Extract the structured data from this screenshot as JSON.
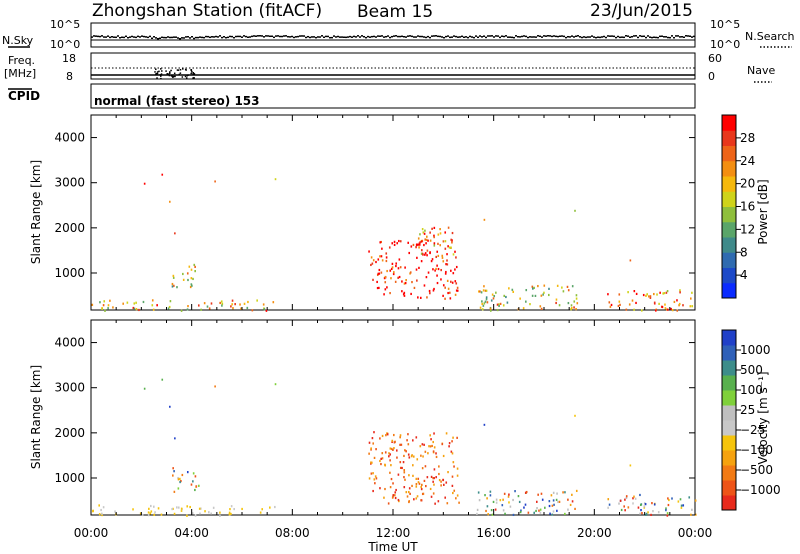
{
  "header": {
    "station": "Zhongshan Station (fitACF)",
    "beam": "Beam 15",
    "date": "23/Jun/2015"
  },
  "panels": {
    "nsky": {
      "label": "N.Sky",
      "y_top": "10^5",
      "y_bottom": "10^0"
    },
    "nsearch": {
      "label": "N.Search",
      "y_top": "10^5",
      "y_bottom": "10^0"
    },
    "freq": {
      "label_line1": "Freq.",
      "label_line2": "[MHz]",
      "y_top": "18",
      "y_bottom": "8"
    },
    "nave": {
      "label": "Nave",
      "y_top": "60",
      "y_bottom": "0"
    },
    "cpid": {
      "label": "CPID",
      "text": "normal (fast stereo) 153"
    }
  },
  "chart_data": [
    {
      "type": "heatmap",
      "name": "power",
      "xlabel": "Time UT",
      "ylabel": "Slant Range [km]",
      "x_ticks": [
        "00:00",
        "04:00",
        "08:00",
        "12:00",
        "16:00",
        "20:00",
        "00:00"
      ],
      "xlim_hours": [
        0,
        24
      ],
      "y_ticks": [
        1000,
        2000,
        3000,
        4000
      ],
      "ylim_km": [
        180,
        4500
      ],
      "colorbar": {
        "label": "Power [dB]",
        "ticks": [
          4,
          8,
          12,
          16,
          20,
          24,
          28
        ],
        "range": [
          0,
          32
        ],
        "colors": [
          "#0a2bff",
          "#1c49c8",
          "#2f6bb0",
          "#3f8a8a",
          "#5aa569",
          "#8fbf3c",
          "#cfd31a",
          "#f5b80c",
          "#f38e11",
          "#ee6418",
          "#e8371c",
          "#ff0000"
        ]
      },
      "echo_regions": [
        {
          "t_start": 0.0,
          "t_end": 7.3,
          "r_min": 180,
          "r_max": 420,
          "level": 0.45
        },
        {
          "t_start": 3.2,
          "t_end": 4.3,
          "r_min": 700,
          "r_max": 1250,
          "level": 0.3
        },
        {
          "t_start": 11.0,
          "t_end": 14.6,
          "r_min": 450,
          "r_max": 1800,
          "level": 0.85
        },
        {
          "t_start": 13.0,
          "t_end": 14.5,
          "r_min": 1400,
          "r_max": 2050,
          "level": 0.55
        },
        {
          "t_start": 15.3,
          "t_end": 19.3,
          "r_min": 180,
          "r_max": 750,
          "level": 0.35
        },
        {
          "t_start": 20.5,
          "t_end": 24.0,
          "r_min": 180,
          "r_max": 650,
          "level": 0.6
        }
      ]
    },
    {
      "type": "heatmap",
      "name": "velocity",
      "xlabel": "Time UT",
      "ylabel": "Slant Range [km]",
      "x_ticks": [
        "00:00",
        "04:00",
        "08:00",
        "12:00",
        "16:00",
        "20:00",
        "00:00"
      ],
      "xlim_hours": [
        0,
        24
      ],
      "y_ticks": [
        1000,
        2000,
        3000,
        4000
      ],
      "ylim_km": [
        180,
        4500
      ],
      "colorbar": {
        "label": "Velocity [m s⁻¹]",
        "ticks": [
          "1000",
          "500",
          "100",
          "25",
          "−25",
          "−100",
          "−500",
          "−1000"
        ],
        "colors": [
          "#2040c8",
          "#2f60b8",
          "#3d8d8a",
          "#58b04e",
          "#7fd03a",
          "#bfbfbf",
          "#c8c8c8",
          "#f5c40c",
          "#f5a20f",
          "#f27a14",
          "#ee5418",
          "#e82a1c"
        ]
      },
      "echo_regions": [
        {
          "t_start": 0.0,
          "t_end": 7.3,
          "r_min": 180,
          "r_max": 420,
          "level": "positive_slow"
        },
        {
          "t_start": 3.2,
          "t_end": 4.3,
          "r_min": 700,
          "r_max": 1250,
          "level": "mixed"
        },
        {
          "t_start": 11.0,
          "t_end": 14.6,
          "r_min": 450,
          "r_max": 2050,
          "level": "negative_strong"
        },
        {
          "t_start": 15.3,
          "t_end": 19.3,
          "r_min": 180,
          "r_max": 750,
          "level": "mixed"
        },
        {
          "t_start": 20.5,
          "t_end": 24.0,
          "r_min": 180,
          "r_max": 650,
          "level": "mixed"
        }
      ]
    }
  ]
}
